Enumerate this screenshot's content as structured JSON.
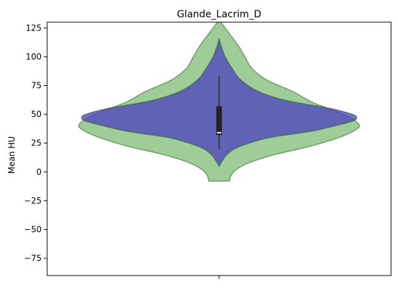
{
  "chart_data": {
    "type": "violin",
    "title": "Glande_Lacrim_D",
    "xlabel": "",
    "ylabel": "Mean HU",
    "ylim": [
      -90,
      130
    ],
    "yticks": [
      -75,
      -50,
      -25,
      0,
      25,
      50,
      75,
      100,
      125
    ],
    "ytick_labels": [
      "−75",
      "−50",
      "−25",
      "0",
      "25",
      "50",
      "75",
      "100",
      "125"
    ],
    "grid": false,
    "series": [
      {
        "color": "#4b3fbf",
        "opacity": 0.75,
        "profile": [
          {
            "y": 116,
            "w": 0.0
          },
          {
            "y": 110,
            "w": 0.02
          },
          {
            "y": 100,
            "w": 0.07
          },
          {
            "y": 90,
            "w": 0.15
          },
          {
            "y": 80,
            "w": 0.25
          },
          {
            "y": 70,
            "w": 0.45
          },
          {
            "y": 62,
            "w": 0.78
          },
          {
            "y": 55,
            "w": 1.3
          },
          {
            "y": 50,
            "w": 1.55
          },
          {
            "y": 47,
            "w": 1.6
          },
          {
            "y": 44,
            "w": 1.55
          },
          {
            "y": 40,
            "w": 1.35
          },
          {
            "y": 35,
            "w": 1.05
          },
          {
            "y": 30,
            "w": 0.6
          },
          {
            "y": 25,
            "w": 0.35
          },
          {
            "y": 20,
            "w": 0.18
          },
          {
            "y": 15,
            "w": 0.09
          },
          {
            "y": 10,
            "w": 0.04
          },
          {
            "y": 5,
            "w": 0.0
          }
        ]
      },
      {
        "color": "#5aa84e",
        "opacity": 0.58,
        "profile": [
          {
            "y": 130,
            "w": 0.02
          },
          {
            "y": 120,
            "w": 0.12
          },
          {
            "y": 110,
            "w": 0.22
          },
          {
            "y": 100,
            "w": 0.3
          },
          {
            "y": 90,
            "w": 0.38
          },
          {
            "y": 80,
            "w": 0.55
          },
          {
            "y": 70,
            "w": 0.85
          },
          {
            "y": 60,
            "w": 1.1
          },
          {
            "y": 50,
            "w": 1.45
          },
          {
            "y": 42,
            "w": 1.62
          },
          {
            "y": 37,
            "w": 1.6
          },
          {
            "y": 30,
            "w": 1.4
          },
          {
            "y": 22,
            "w": 1.05
          },
          {
            "y": 15,
            "w": 0.65
          },
          {
            "y": 8,
            "w": 0.35
          },
          {
            "y": 2,
            "w": 0.2
          },
          {
            "y": -3,
            "w": 0.14
          },
          {
            "y": -8,
            "w": 0.12
          }
        ]
      }
    ],
    "box": {
      "whisker_low": 20,
      "q1": 32,
      "median": 34,
      "q3": 57,
      "whisker_high": 83
    }
  }
}
